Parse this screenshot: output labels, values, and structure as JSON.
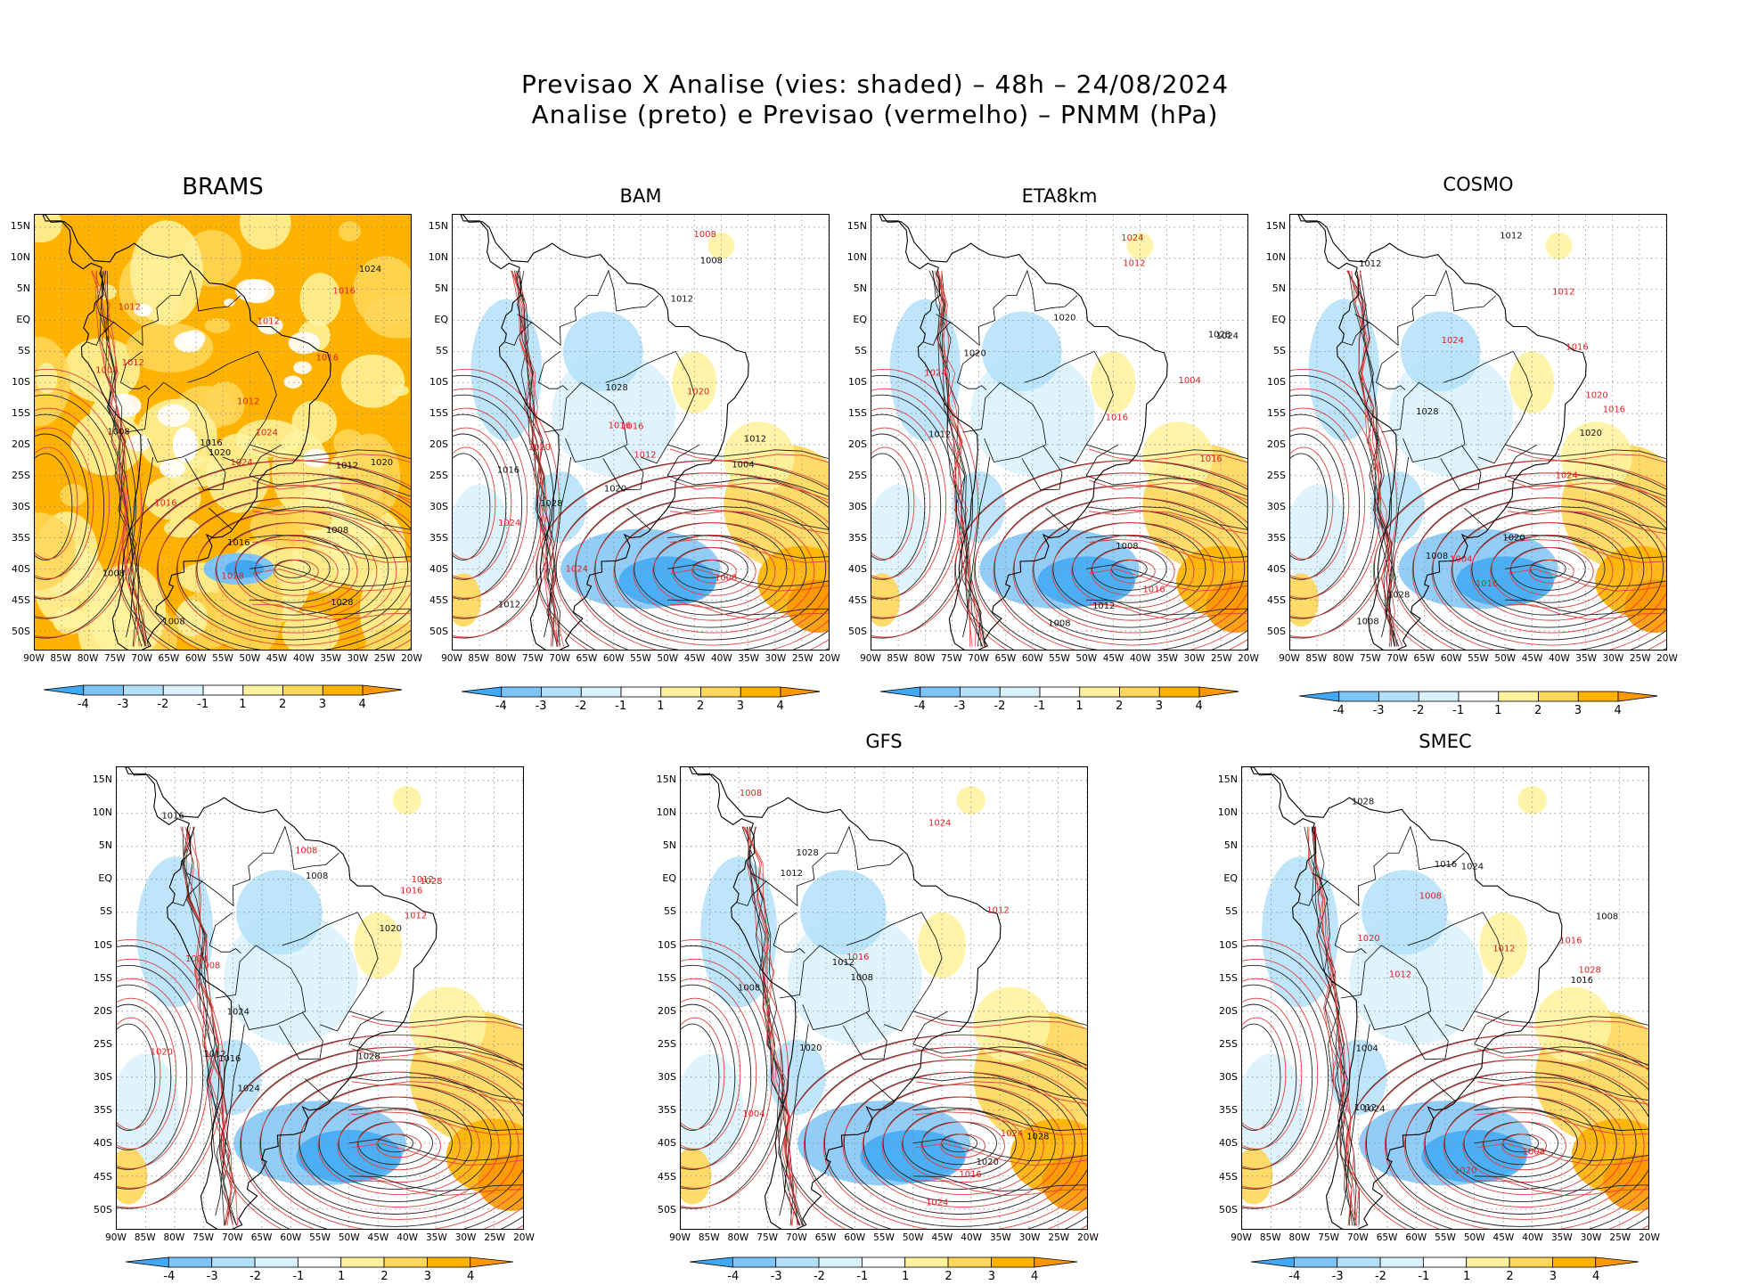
{
  "title": {
    "line1": "Previsao X Analise (vies: shaded) – 48h – 24/08/2024",
    "line2": "Analise (preto) e Previsao (vermelho) – PNMM (hPa)"
  },
  "lat_labels": [
    "15N",
    "10N",
    "5N",
    "EQ",
    "5S",
    "10S",
    "15S",
    "20S",
    "25S",
    "30S",
    "35S",
    "40S",
    "45S",
    "50S"
  ],
  "lon_labels": [
    "90W",
    "85W",
    "80W",
    "75W",
    "70W",
    "65W",
    "60W",
    "55W",
    "50W",
    "45W",
    "40W",
    "35W",
    "30W",
    "25W",
    "20W"
  ],
  "colorbar": {
    "labels": [
      "-4",
      "-3",
      "-2",
      "-1",
      "1",
      "2",
      "3",
      "4"
    ],
    "colors": [
      "#3fa9f5",
      "#7fc4f7",
      "#b3e0f9",
      "#d9f1fb",
      "#ffffff",
      "#fff3a0",
      "#ffd75a",
      "#ffb300",
      "#ff9800"
    ]
  },
  "panels": [
    {
      "name": "BRAMS",
      "style": "warm"
    },
    {
      "name": "BAM",
      "style": "mixed"
    },
    {
      "name": "ETA8km",
      "style": "mixed"
    },
    {
      "name": "COSMO",
      "style": "mixed"
    },
    {
      "name": "",
      "style": "mixed"
    },
    {
      "name": "GFS",
      "style": "mixed"
    },
    {
      "name": "SMEC",
      "style": "mixed"
    }
  ],
  "isobar_labels": {
    "black": [
      "1008",
      "1012",
      "1016",
      "1020",
      "1024",
      "1028",
      "1004"
    ],
    "red": [
      "1008",
      "1012",
      "1016",
      "1020",
      "1024",
      "1028",
      "1004"
    ]
  },
  "map_text": {
    "p0": [
      "1008",
      "1008",
      "1016",
      "1012",
      "1008",
      "1016",
      "1020",
      "1028",
      "1024",
      "1012",
      "1016",
      "1012",
      "1008",
      "1024",
      "1028",
      "1024",
      "1012",
      "1016",
      "1020",
      "1016",
      "1008",
      "1012"
    ],
    "p1": [
      "1012",
      "1008",
      "1012",
      "1016",
      "1020",
      "1024",
      "1028",
      "1020",
      "1012",
      "1008",
      "1004",
      "1024",
      "1028",
      "1020",
      "1008",
      "1012",
      "1016",
      "1016"
    ],
    "p2": [
      "1012",
      "1012",
      "1008",
      "1016",
      "1020",
      "1016",
      "1020",
      "1024",
      "1028",
      "1024",
      "1008",
      "1004",
      "1012",
      "1016",
      "1024"
    ],
    "p3": [
      "1012",
      "1012",
      "1008",
      "1016",
      "1020",
      "1020",
      "1028",
      "1024",
      "1008",
      "1004",
      "1012",
      "1016",
      "1020",
      "1024",
      "1028",
      "1016"
    ],
    "p4": [
      "1012",
      "1012",
      "1016",
      "1008",
      "1020",
      "1016",
      "1024",
      "1028",
      "1024",
      "1012",
      "1008",
      "1004",
      "1016",
      "1020",
      "1028",
      "1008"
    ],
    "p5": [
      "1012",
      "1012",
      "1008",
      "1016",
      "1020",
      "1024",
      "1028",
      "1024",
      "1008",
      "1004",
      "1012",
      "1016",
      "1020",
      "1024",
      "1028",
      "1008"
    ],
    "p6": [
      "1012",
      "1016",
      "1008",
      "1012",
      "1016",
      "1020",
      "1024",
      "1028",
      "1024",
      "1008",
      "1004",
      "1012",
      "1016",
      "1020",
      "1028",
      "1008"
    ]
  }
}
